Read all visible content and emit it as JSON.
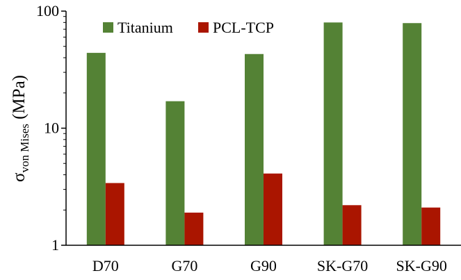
{
  "chart_data": {
    "type": "bar",
    "yscale": "log",
    "ylim": [
      1,
      100
    ],
    "y_ticks": [
      1,
      10,
      100
    ],
    "y_tick_labels": [
      "1",
      "10",
      "100"
    ],
    "ylabel": {
      "symbol": "σ",
      "subscript": "von Mises",
      "unit": " (MPa)"
    },
    "categories": [
      "D70",
      "G70",
      "G90",
      "SK-G70",
      "SK-G90"
    ],
    "series": [
      {
        "name": "Titanium",
        "color": "#548235",
        "values": [
          44,
          17,
          43,
          80,
          79
        ]
      },
      {
        "name": "PCL-TCP",
        "color": "#aa1500",
        "values": [
          3.4,
          1.9,
          4.1,
          2.2,
          2.1
        ]
      }
    ],
    "legend_position": "top-left",
    "grid": false
  }
}
